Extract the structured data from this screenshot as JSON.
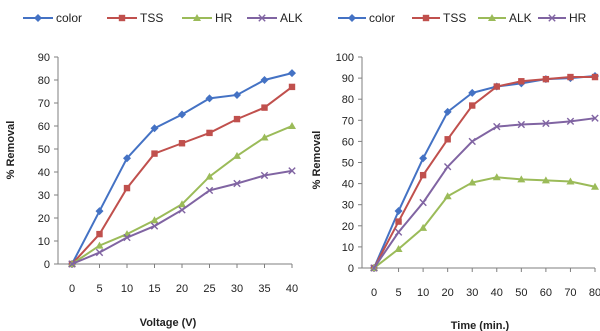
{
  "chart_data": [
    {
      "type": "line",
      "title": "",
      "xlabel": "Voltage (V)",
      "ylabel": "% Removal",
      "x": [
        0,
        5,
        10,
        15,
        20,
        25,
        30,
        35,
        40
      ],
      "xticks": [
        "0",
        "5",
        "10",
        "15",
        "20",
        "25",
        "30",
        "35",
        "40"
      ],
      "yticks": [
        "0",
        "10",
        "20",
        "30",
        "40",
        "50",
        "60",
        "70",
        "80",
        "90"
      ],
      "xlim": [
        0,
        40
      ],
      "ylim": [
        0,
        90
      ],
      "legend_position": "top",
      "grid": false,
      "series": [
        {
          "name": "color",
          "color": "#4472C4",
          "marker": "diamond",
          "values": [
            0,
            23,
            46,
            59,
            65,
            72,
            73.5,
            80,
            83
          ]
        },
        {
          "name": "TSS",
          "color": "#C0504D",
          "marker": "square",
          "values": [
            0,
            13,
            33,
            48,
            52.5,
            57,
            63,
            68,
            77
          ]
        },
        {
          "name": "HR",
          "color": "#9BBB59",
          "marker": "triangle",
          "values": [
            0,
            8,
            13,
            19,
            26,
            38,
            47,
            55,
            60
          ]
        },
        {
          "name": "ALK",
          "color": "#8064A2",
          "marker": "x",
          "values": [
            0,
            5,
            11.5,
            16.5,
            23.5,
            32,
            35,
            38.5,
            40.5
          ]
        }
      ]
    },
    {
      "type": "line",
      "title": "",
      "xlabel": "Time (min.)",
      "ylabel": "% Removal",
      "x": [
        0,
        5,
        10,
        20,
        30,
        40,
        50,
        60,
        70,
        80
      ],
      "xticks": [
        "0",
        "5",
        "10",
        "20",
        "30",
        "40",
        "50",
        "60",
        "70",
        "80"
      ],
      "yticks": [
        "0",
        "10",
        "20",
        "30",
        "40",
        "50",
        "60",
        "70",
        "80",
        "90",
        "100"
      ],
      "xlim": [
        0,
        80
      ],
      "ylim": [
        0,
        100
      ],
      "legend_position": "top",
      "grid": false,
      "series": [
        {
          "name": "color",
          "color": "#4472C4",
          "marker": "diamond",
          "values": [
            0,
            27,
            52,
            74,
            83,
            86,
            87.5,
            89.5,
            90,
            91
          ]
        },
        {
          "name": "TSS",
          "color": "#C0504D",
          "marker": "square",
          "values": [
            0,
            22,
            44,
            61,
            77,
            86,
            88.5,
            89.5,
            90.5,
            90.5
          ]
        },
        {
          "name": "ALK",
          "color": "#9BBB59",
          "marker": "triangle",
          "values": [
            0,
            9,
            19,
            34,
            40.5,
            43,
            42,
            41.5,
            41,
            38.5
          ]
        },
        {
          "name": "HR",
          "color": "#8064A2",
          "marker": "x",
          "values": [
            0,
            17,
            31,
            48,
            60,
            67,
            68,
            68.5,
            69.5,
            71
          ]
        }
      ]
    }
  ]
}
